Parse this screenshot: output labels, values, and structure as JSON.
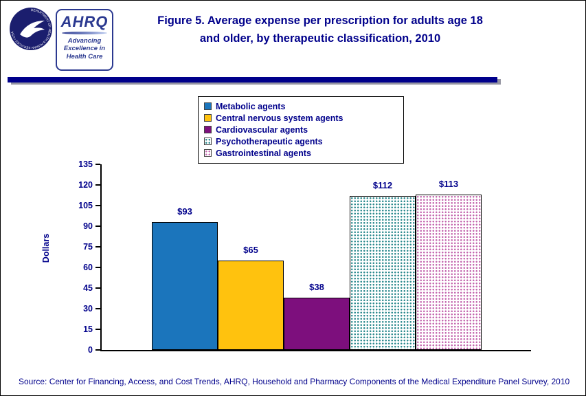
{
  "page": {
    "background": "#ffffff",
    "accent_navy": "#00008b"
  },
  "header": {
    "title_line1": "Figure 5. Average expense per prescription for adults age 18",
    "title_line2": "and older, by therapeutic classification, 2010",
    "hhs_ring_text": "DEPARTMENT OF HEALTH & HUMAN SERVICES • USA",
    "ahrq_logo": {
      "acronym": "AHRQ",
      "tagline_line1": "Advancing",
      "tagline_line2": "Excellence in",
      "tagline_line3": "Health Care"
    }
  },
  "chart_data": {
    "type": "bar",
    "title": "Figure 5. Average expense per prescription for adults age 18 and older, by therapeutic classification, 2010",
    "categories": [
      "Metabolic agents",
      "Central nervous system agents",
      "Cardiovascular agents",
      "Psychotherapeutic agents",
      "Gastrointestinal agents"
    ],
    "values": [
      93,
      65,
      38,
      112,
      113
    ],
    "value_labels": [
      "$93",
      "$65",
      "$38",
      "$112",
      "$113"
    ],
    "xlabel": "",
    "ylabel": "Dollars",
    "ylim": [
      0,
      135
    ],
    "yticks": [
      0,
      15,
      30,
      45,
      60,
      75,
      90,
      105,
      120,
      135
    ],
    "grid": false,
    "legend_position": "top-center",
    "bar_fills": [
      {
        "type": "solid",
        "color": "#1b75bc"
      },
      {
        "type": "solid",
        "color": "#ffc20e"
      },
      {
        "type": "solid",
        "color": "#7d0f7d"
      },
      {
        "type": "dots",
        "color": "#2e8b8f",
        "background": "#ffffff"
      },
      {
        "type": "dots",
        "color": "#c468af",
        "background": "#ffffff"
      }
    ]
  },
  "footer": {
    "source": "Source: Center for Financing, Access, and Cost Trends, AHRQ, Household and Pharmacy Components of the Medical Expenditure Panel Survey, 2010"
  }
}
